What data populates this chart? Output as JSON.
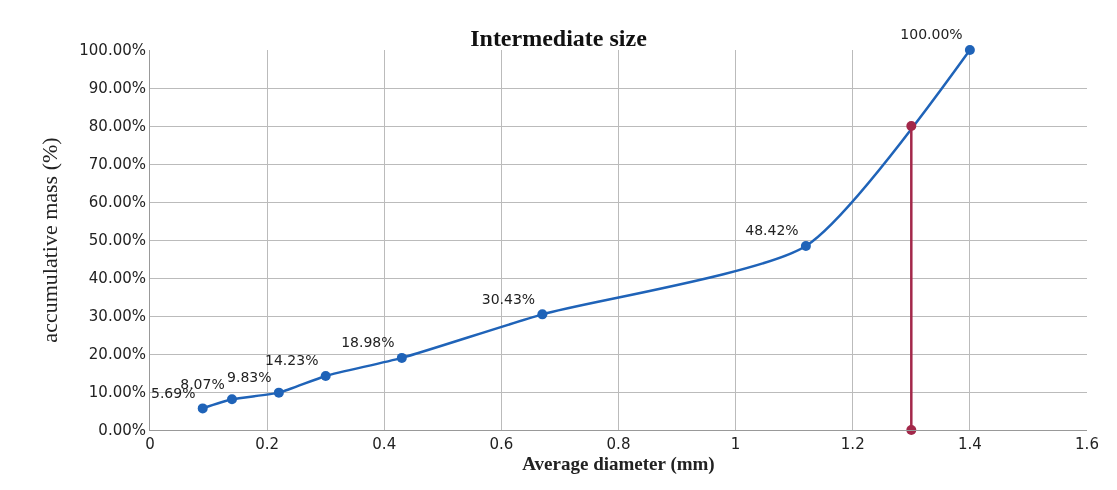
{
  "chart_data": {
    "type": "line",
    "title": "Intermediate size",
    "xlabel": "Average diameter (mm)",
    "ylabel": "accumulative mass (%)",
    "series": [
      {
        "color": "#1f63b8",
        "x": [
          0.09,
          0.14,
          0.22,
          0.3,
          0.43,
          0.67,
          1.12,
          1.4
        ],
        "values": [
          5.69,
          8.07,
          9.83,
          14.23,
          18.98,
          30.43,
          48.42,
          100
        ],
        "value_labels": [
          "5.69%",
          "8.07%",
          "9.83%",
          "14.23%",
          "18.98%",
          "30.43%",
          "48.42%",
          "100.00%"
        ]
      },
      {
        "color": "#a3284a",
        "x": [
          1.3,
          1.3
        ],
        "values": [
          0,
          80
        ]
      }
    ],
    "xlim": [
      0,
      1.6
    ],
    "xticks": [
      0,
      0.2,
      0.4,
      0.6,
      0.8,
      1,
      1.2,
      1.4,
      1.6
    ],
    "ylim": [
      0,
      100
    ],
    "yticks": [
      {
        "value": 0,
        "label": "0.00%"
      },
      {
        "value": 10,
        "label": "10.00%"
      },
      {
        "value": 20,
        "label": "20.00%"
      },
      {
        "value": 30,
        "label": "30.00%"
      },
      {
        "value": 40,
        "label": "40.00%"
      },
      {
        "value": 50,
        "label": "50.00%"
      },
      {
        "value": 60,
        "label": "60.00%"
      },
      {
        "value": 70,
        "label": "70.00%"
      },
      {
        "value": 80,
        "label": "80.00%"
      },
      {
        "value": 90,
        "label": "90.00%"
      },
      {
        "value": 100,
        "label": "100.00%"
      }
    ],
    "grid": true,
    "marker": "circle",
    "line_style": "solid"
  }
}
